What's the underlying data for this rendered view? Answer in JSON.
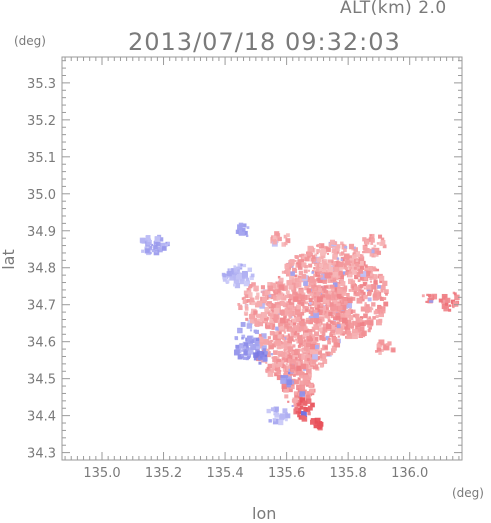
{
  "header": {
    "altitude_label": "ALT(km) 2.0",
    "datetime": "2013/07/18 09:32:03"
  },
  "chart_data": {
    "type": "heatmap",
    "title": "2013/07/18 09:32:03",
    "xlabel": "lon",
    "ylabel": "lat",
    "x_unit": "(deg)",
    "y_unit": "(deg)",
    "xlim": [
      134.87,
      136.17
    ],
    "ylim": [
      34.28,
      35.37
    ],
    "x_ticks": [
      135.0,
      135.2,
      135.4,
      135.6,
      135.8,
      136.0
    ],
    "x_tick_labels": [
      "135.0",
      "135.2",
      "135.4",
      "135.6",
      "135.8",
      "136.0"
    ],
    "y_ticks": [
      34.3,
      34.4,
      34.5,
      34.6,
      34.7,
      34.8,
      34.9,
      35.0,
      35.1,
      35.2,
      35.3
    ],
    "y_tick_labels": [
      "34.3",
      "34.4",
      "34.5",
      "34.6",
      "34.7",
      "34.8",
      "34.9",
      "35.0",
      "35.1",
      "35.2",
      "35.3"
    ],
    "grid": false,
    "colors": {
      "positive_light": "#f9c9c9",
      "positive_mid": "#f3a4a4",
      "positive_strong": "#e8505a",
      "negative_light": "#d6d6fb",
      "negative_mid": "#a9a9f2",
      "negative_strong": "#6a6ae0"
    },
    "regions": [
      {
        "lon": 135.67,
        "lat": 34.68,
        "rlon": 0.12,
        "rlat": 0.16,
        "sign": 1,
        "level": 0.35
      },
      {
        "lon": 135.8,
        "lat": 34.72,
        "rlon": 0.13,
        "rlat": 0.11,
        "sign": 1,
        "level": 0.4
      },
      {
        "lon": 135.75,
        "lat": 34.82,
        "rlon": 0.1,
        "rlat": 0.05,
        "sign": 1,
        "level": 0.3
      },
      {
        "lon": 135.6,
        "lat": 34.58,
        "rlon": 0.1,
        "rlat": 0.08,
        "sign": 1,
        "level": 0.35
      },
      {
        "lon": 135.52,
        "lat": 34.7,
        "rlon": 0.08,
        "rlat": 0.06,
        "sign": 1,
        "level": 0.3
      },
      {
        "lon": 135.58,
        "lat": 34.88,
        "rlon": 0.03,
        "rlat": 0.02,
        "sign": 1,
        "level": 0.3
      },
      {
        "lon": 135.88,
        "lat": 34.86,
        "rlon": 0.04,
        "rlat": 0.03,
        "sign": 1,
        "level": 0.3
      },
      {
        "lon": 135.64,
        "lat": 34.48,
        "rlon": 0.05,
        "rlat": 0.06,
        "sign": 1,
        "level": 0.45
      },
      {
        "lon": 135.66,
        "lat": 34.42,
        "rlon": 0.03,
        "rlat": 0.03,
        "sign": 1,
        "level": 0.8
      },
      {
        "lon": 135.7,
        "lat": 34.38,
        "rlon": 0.02,
        "rlat": 0.015,
        "sign": 1,
        "level": 0.9
      },
      {
        "lon": 135.92,
        "lat": 34.58,
        "rlon": 0.03,
        "rlat": 0.02,
        "sign": 1,
        "level": 0.35
      },
      {
        "lon": 136.06,
        "lat": 34.72,
        "rlon": 0.02,
        "rlat": 0.015,
        "sign": 1,
        "level": 0.5
      },
      {
        "lon": 136.13,
        "lat": 34.71,
        "rlon": 0.03,
        "rlat": 0.025,
        "sign": 1,
        "level": 0.6
      },
      {
        "lon": 135.47,
        "lat": 34.6,
        "rlon": 0.04,
        "rlat": 0.05,
        "sign": -1,
        "level": 0.5
      },
      {
        "lon": 135.52,
        "lat": 34.56,
        "rlon": 0.025,
        "rlat": 0.02,
        "sign": -1,
        "level": 0.7
      },
      {
        "lon": 135.44,
        "lat": 34.78,
        "rlon": 0.05,
        "rlat": 0.03,
        "sign": -1,
        "level": 0.25
      },
      {
        "lon": 135.17,
        "lat": 34.86,
        "rlon": 0.05,
        "rlat": 0.025,
        "sign": -1,
        "level": 0.4
      },
      {
        "lon": 135.46,
        "lat": 34.9,
        "rlon": 0.02,
        "rlat": 0.02,
        "sign": -1,
        "level": 0.45
      },
      {
        "lon": 135.57,
        "lat": 34.4,
        "rlon": 0.04,
        "rlat": 0.02,
        "sign": -1,
        "level": 0.3
      },
      {
        "lon": 135.6,
        "lat": 34.5,
        "rlon": 0.02,
        "rlat": 0.02,
        "sign": -1,
        "level": 0.6
      }
    ]
  }
}
